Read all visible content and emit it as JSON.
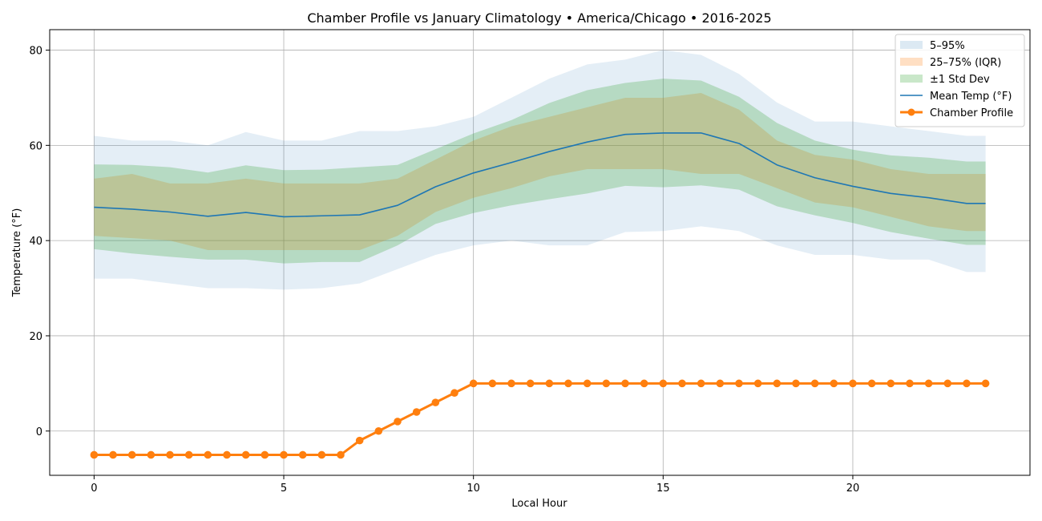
{
  "chart_data": {
    "type": "line",
    "title": "Chamber Profile vs January Climatology • America/Chicago • 2016-2025",
    "xlabel": "Local Hour",
    "ylabel": "Temperature (°F)",
    "xlim": [
      -1.17,
      24.67
    ],
    "ylim": [
      -9.3,
      84.3
    ],
    "xticks": [
      0,
      5,
      10,
      15,
      20
    ],
    "yticks": [
      0,
      20,
      40,
      60,
      80
    ],
    "grid": true,
    "legend_position": "top-right",
    "hours": [
      0,
      1,
      2,
      3,
      4,
      5,
      6,
      7,
      8,
      9,
      10,
      11,
      12,
      13,
      14,
      15,
      16,
      17,
      18,
      19,
      20,
      21,
      22,
      23,
      23.5
    ],
    "bands": [
      {
        "name": "5–95%",
        "color": "#1f77b4",
        "opacity": 0.12,
        "lower": [
          32,
          32,
          31,
          30,
          30,
          29.7,
          30,
          31,
          34,
          37,
          39,
          40,
          39,
          39,
          41.8,
          42,
          43,
          42,
          39,
          37,
          37,
          36,
          36,
          33.4,
          33.4
        ],
        "upper": [
          62,
          61,
          61,
          60,
          62.8,
          61,
          61,
          63,
          63,
          64,
          66,
          70,
          74,
          77,
          78,
          80,
          79,
          75,
          69,
          65,
          65,
          64,
          63,
          62,
          62
        ]
      },
      {
        "name": "25–75% (IQR)",
        "color": "#ff7f0e",
        "opacity": 0.25,
        "lower": [
          41,
          40.5,
          40,
          38,
          38,
          38,
          38,
          38,
          41,
          46,
          49,
          51,
          53.5,
          55,
          55,
          55,
          54,
          54,
          51,
          48,
          47,
          45,
          43,
          42,
          42
        ],
        "upper": [
          53,
          54,
          52,
          52,
          53,
          52,
          52,
          52,
          53,
          57,
          61,
          64,
          66,
          68,
          70,
          70,
          71,
          67.5,
          61,
          58,
          57,
          55,
          54,
          54,
          54
        ]
      },
      {
        "name": "±1 Std Dev",
        "color": "#2ca02c",
        "opacity": 0.25,
        "lower": [
          38.2,
          37.3,
          36.6,
          36,
          36,
          35.2,
          35.5,
          35.5,
          39,
          43.5,
          45.8,
          47.4,
          48.7,
          49.9,
          51.5,
          51.2,
          51.6,
          50.7,
          47.2,
          45.3,
          43.7,
          41.8,
          40.4,
          39.1,
          39.1
        ],
        "upper": [
          56,
          55.9,
          55.4,
          54.3,
          55.8,
          54.8,
          54.9,
          55.4,
          55.9,
          59.2,
          62.5,
          65.3,
          68.9,
          71.6,
          73.1,
          74,
          73.6,
          70.2,
          64.7,
          61,
          59.1,
          57.9,
          57.4,
          56.6,
          56.6
        ]
      }
    ],
    "series": [
      {
        "name": "Mean Temp (°F)",
        "color": "#1f77b4",
        "x": [
          0,
          1,
          2,
          3,
          4,
          5,
          6,
          7,
          8,
          9,
          10,
          11,
          12,
          13,
          14,
          15,
          16,
          17,
          18,
          19,
          20,
          21,
          22,
          23,
          23.5
        ],
        "y": [
          47,
          46.6,
          46,
          45.1,
          45.9,
          45,
          45.2,
          45.4,
          47.4,
          51.3,
          54.2,
          56.4,
          58.7,
          60.7,
          62.3,
          62.6,
          62.6,
          60.4,
          55.9,
          53.2,
          51.4,
          49.9,
          49,
          47.8,
          47.8
        ]
      },
      {
        "name": "Chamber Profile",
        "color": "#ff7f0e",
        "markers": true,
        "x": [
          0,
          0.5,
          1,
          1.5,
          2,
          2.5,
          3,
          3.5,
          4,
          4.5,
          5,
          5.5,
          6,
          6.5,
          7,
          7.5,
          8,
          8.5,
          9,
          9.5,
          10,
          10.5,
          11,
          11.5,
          12,
          12.5,
          13,
          13.5,
          14,
          14.5,
          15,
          15.5,
          16,
          16.5,
          17,
          17.5,
          18,
          18.5,
          19,
          19.5,
          20,
          20.5,
          21,
          21.5,
          22,
          22.5,
          23,
          23.5
        ],
        "y": [
          -5,
          -5,
          -5,
          -5,
          -5,
          -5,
          -5,
          -5,
          -5,
          -5,
          -5,
          -5,
          -5,
          -5,
          -2,
          0,
          2,
          4,
          6,
          8,
          10,
          10,
          10,
          10,
          10,
          10,
          10,
          10,
          10,
          10,
          10,
          10,
          10,
          10,
          10,
          10,
          10,
          10,
          10,
          10,
          10,
          10,
          10,
          10,
          10,
          10,
          10,
          10
        ]
      }
    ],
    "legend": [
      {
        "label": "5–95%",
        "kind": "band",
        "color": "#dce9f3"
      },
      {
        "label": "25–75% (IQR)",
        "kind": "band",
        "color": "#ffdfc3"
      },
      {
        "label": "±1 Std Dev",
        "kind": "band",
        "color": "#c9e7c9"
      },
      {
        "label": "Mean Temp (°F)",
        "kind": "line",
        "color": "#1f77b4"
      },
      {
        "label": "Chamber Profile",
        "kind": "line-marker",
        "color": "#ff7f0e"
      }
    ]
  }
}
